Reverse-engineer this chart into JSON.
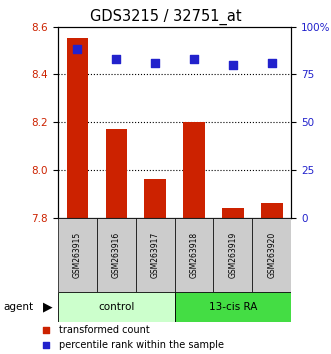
{
  "title": "GDS3215 / 32751_at",
  "categories": [
    "GSM263915",
    "GSM263916",
    "GSM263917",
    "GSM263918",
    "GSM263919",
    "GSM263920"
  ],
  "bar_values": [
    8.55,
    8.17,
    7.96,
    8.2,
    7.84,
    7.86
  ],
  "percentile_values": [
    88,
    83,
    81,
    83,
    80,
    81
  ],
  "bar_color": "#cc2200",
  "percentile_color": "#2222cc",
  "ylim_left": [
    7.8,
    8.6
  ],
  "ylim_right": [
    0,
    100
  ],
  "yticks_left": [
    7.8,
    8.0,
    8.2,
    8.4,
    8.6
  ],
  "yticks_right": [
    0,
    25,
    50,
    75,
    100
  ],
  "group1_label": "control",
  "group2_label": "13-cis RA",
  "group1_color": "#ccffcc",
  "group2_color": "#44dd44",
  "agent_label": "agent",
  "legend_bar_label": "transformed count",
  "legend_percentile_label": "percentile rank within the sample",
  "bar_width": 0.55,
  "label_box_color": "#cccccc",
  "grid_dotted_ticks": [
    8.0,
    8.2,
    8.4
  ]
}
